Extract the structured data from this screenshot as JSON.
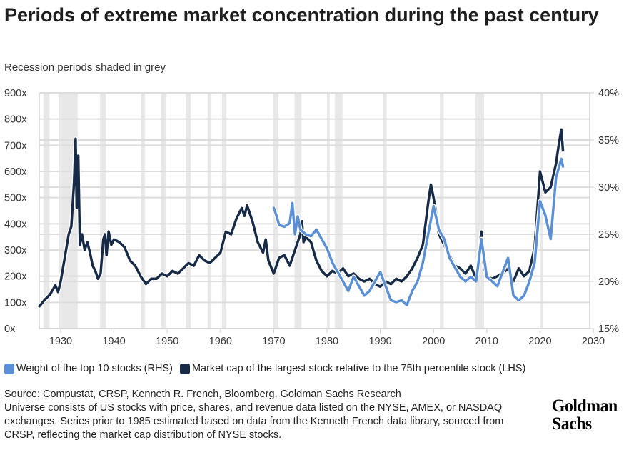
{
  "header": {
    "title": "Periods of extreme market concentration during the past century",
    "subtitle": "Recession periods shaded in grey"
  },
  "legend": {
    "items": [
      {
        "label": "Weight of the top 10 stocks (RHS)",
        "color": "#5b8fd6"
      },
      {
        "label": "Market cap of the largest stock relative to the 75th percentile stock (LHS)",
        "color": "#172b47"
      }
    ]
  },
  "footer": {
    "source_lines": [
      "Source: Compustat, CRSP, Kenneth R. French, Bloomberg, Goldman Sachs Research",
      "Universe consists of US stocks with price, shares, and revenue data listed on the NYSE, AMEX, or NASDAQ exchanges. Series prior to 1985 estimated based on data from the Kenneth French data library, sourced from CRSP, reflecting the market cap distribution of NYSE stocks."
    ],
    "logo_line1": "Goldman",
    "logo_line2": "Sachs"
  },
  "chart_data": {
    "type": "line",
    "title": "Periods of extreme market concentration during the past century",
    "subtitle": "Recession periods shaded in grey",
    "xlabel": "",
    "ylabel_left": "",
    "ylabel_right": "",
    "xlim": [
      1926,
      2030
    ],
    "ylim_left": [
      0,
      900
    ],
    "ylim_right": [
      15,
      40
    ],
    "x_ticks": [
      1930,
      1940,
      1950,
      1960,
      1970,
      1980,
      1990,
      2000,
      2010,
      2020,
      2030
    ],
    "x_tick_labels": [
      "1930",
      "1940",
      "1950",
      "1960",
      "1970",
      "1980",
      "1990",
      "2000",
      "2010",
      "2020",
      "2030"
    ],
    "y_left_ticks": [
      0,
      100,
      200,
      300,
      400,
      500,
      600,
      700,
      800,
      900
    ],
    "y_left_tick_labels": [
      "0x",
      "100x",
      "200x",
      "300x",
      "400x",
      "500x",
      "600x",
      "700x",
      "800x",
      "900x"
    ],
    "y_right_ticks": [
      15,
      20,
      25,
      30,
      35,
      40
    ],
    "y_right_tick_labels": [
      "15%",
      "20%",
      "25%",
      "30%",
      "35%",
      "40%"
    ],
    "grid": true,
    "legend_position": "bottom-left",
    "recessions": [
      [
        1926.8,
        1927.9
      ],
      [
        1929.6,
        1933.2
      ],
      [
        1937.4,
        1938.5
      ],
      [
        1945.1,
        1945.8
      ],
      [
        1948.9,
        1949.8
      ],
      [
        1953.5,
        1954.4
      ],
      [
        1957.6,
        1958.3
      ],
      [
        1960.3,
        1961.1
      ],
      [
        1969.9,
        1970.9
      ],
      [
        1973.9,
        1975.2
      ],
      [
        1980.0,
        1980.5
      ],
      [
        1981.5,
        1982.9
      ],
      [
        1990.5,
        1991.2
      ],
      [
        2001.2,
        2001.9
      ],
      [
        2007.9,
        2009.5
      ],
      [
        2020.1,
        2020.4
      ]
    ],
    "series": [
      {
        "name": "Weight of the top 10 stocks (RHS)",
        "axis": "right",
        "color": "#5b8fd6",
        "x": [
          1970,
          1970.5,
          1971,
          1972,
          1973,
          1973.5,
          1974,
          1974.5,
          1975,
          1976,
          1977,
          1978,
          1979,
          1980,
          1981,
          1982,
          1983,
          1984,
          1985,
          1986,
          1987,
          1988,
          1989,
          1990,
          1991,
          1992,
          1993,
          1994,
          1995,
          1996,
          1997,
          1998,
          1999,
          2000,
          2001,
          2002,
          2003,
          2004,
          2005,
          2006,
          2007,
          2008,
          2009,
          2010,
          2011,
          2012,
          2013,
          2014,
          2015,
          2016,
          2017,
          2018,
          2019,
          2020,
          2021,
          2022,
          2023,
          2024,
          2024.3
        ],
        "values": [
          27.8,
          27.0,
          26.0,
          25.8,
          26.2,
          28.3,
          25.0,
          26.9,
          25.5,
          25.0,
          24.8,
          25.5,
          24.5,
          23.5,
          22.0,
          21.0,
          20.0,
          19.0,
          20.5,
          19.5,
          18.5,
          19.0,
          20.0,
          21.0,
          19.5,
          18.0,
          17.8,
          18.0,
          17.5,
          19.0,
          20.0,
          22.0,
          25.0,
          28.0,
          25.5,
          24.5,
          22.5,
          21.5,
          20.5,
          20.0,
          20.5,
          20.0,
          24.5,
          20.5,
          20.0,
          19.5,
          21.0,
          22.5,
          18.5,
          18.0,
          18.5,
          20.0,
          22.0,
          28.5,
          27.0,
          24.5,
          31.0,
          33.0,
          32.2
        ]
      },
      {
        "name": "Market cap of the largest stock relative to the 75th percentile stock (LHS)",
        "axis": "left",
        "color": "#172b47",
        "x": [
          1926,
          1927,
          1928,
          1929,
          1929.5,
          1930,
          1931,
          1931.5,
          1932,
          1932.5,
          1932.8,
          1933,
          1933.3,
          1933.6,
          1934,
          1934.5,
          1935,
          1935.5,
          1936,
          1936.5,
          1937,
          1937.5,
          1938,
          1938.3,
          1938.6,
          1939,
          1939.5,
          1940,
          1941,
          1942,
          1943,
          1944,
          1945,
          1946,
          1947,
          1948,
          1949,
          1950,
          1951,
          1952,
          1953,
          1954,
          1955,
          1956,
          1957,
          1958,
          1959,
          1960,
          1961,
          1962,
          1963,
          1964,
          1964.5,
          1965,
          1966,
          1967,
          1968,
          1968.5,
          1969,
          1970,
          1971,
          1972,
          1973,
          1974,
          1975,
          1975.3,
          1975.6,
          1976,
          1977,
          1978,
          1979,
          1980,
          1981,
          1982,
          1983,
          1984,
          1985,
          1986,
          1987,
          1988,
          1989,
          1990,
          1991,
          1992,
          1993,
          1994,
          1995,
          1996,
          1997,
          1998,
          1999,
          1999.5,
          2000,
          2000.5,
          2001,
          2002,
          2003,
          2004,
          2005,
          2006,
          2007,
          2008,
          2009,
          2009.5,
          2010,
          2011,
          2012,
          2013,
          2014,
          2015,
          2016,
          2017,
          2018,
          2019,
          2020,
          2021,
          2022,
          2023,
          2023.5,
          2024,
          2024.3
        ],
        "values": [
          85,
          110,
          130,
          165,
          140,
          180,
          300,
          360,
          390,
          560,
          725,
          460,
          660,
          320,
          360,
          300,
          330,
          290,
          240,
          220,
          190,
          210,
          340,
          360,
          280,
          370,
          320,
          340,
          330,
          310,
          260,
          240,
          200,
          170,
          190,
          190,
          210,
          200,
          220,
          210,
          230,
          250,
          240,
          280,
          260,
          250,
          270,
          290,
          370,
          360,
          420,
          460,
          430,
          470,
          410,
          330,
          290,
          340,
          260,
          210,
          270,
          280,
          240,
          300,
          360,
          410,
          330,
          350,
          330,
          260,
          220,
          200,
          220,
          210,
          230,
          200,
          210,
          190,
          180,
          190,
          170,
          160,
          180,
          170,
          190,
          180,
          200,
          230,
          270,
          320,
          480,
          550,
          500,
          440,
          360,
          320,
          280,
          240,
          230,
          210,
          240,
          190,
          370,
          230,
          200,
          190,
          200,
          210,
          230,
          180,
          230,
          200,
          220,
          310,
          600,
          520,
          540,
          630,
          700,
          760,
          680
        ]
      }
    ]
  }
}
